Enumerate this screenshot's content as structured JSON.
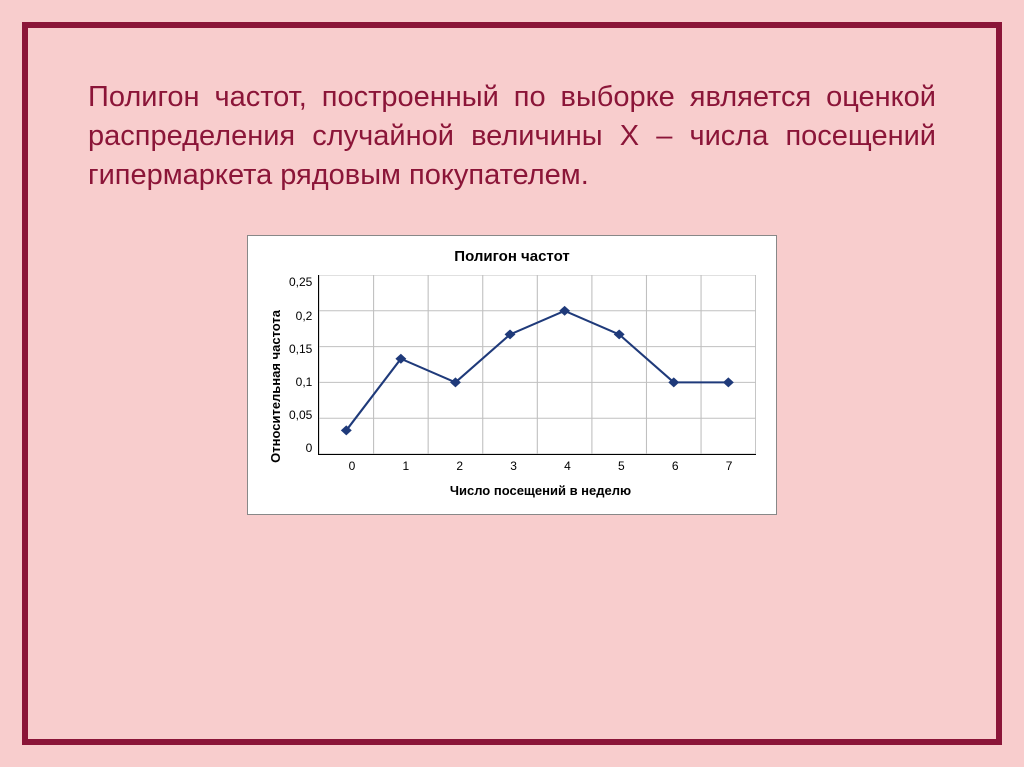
{
  "description": {
    "text": "Полигон частот, построенный по выборке является оценкой распределения случайной величины Х – числа посещений гипермаркета рядовым покупателем."
  },
  "chart": {
    "type": "line",
    "title": "Полигон частот",
    "x_label": "Число посещений в неделю",
    "y_label": "Относительная частота",
    "x_values": [
      0,
      1,
      2,
      3,
      4,
      5,
      6,
      7
    ],
    "y_values": [
      0.033,
      0.133,
      0.1,
      0.167,
      0.2,
      0.167,
      0.1,
      0.1
    ],
    "x_ticks": [
      "0",
      "1",
      "2",
      "3",
      "4",
      "5",
      "6",
      "7"
    ],
    "y_ticks": [
      "0,25",
      "0,2",
      "0,15",
      "0,1",
      "0,05",
      "0"
    ],
    "ylim": [
      0,
      0.25
    ],
    "xlim": [
      0,
      7
    ],
    "line_color": "#1f3a7a",
    "marker_color": "#1f3a7a",
    "marker_shape": "diamond",
    "marker_size": 5,
    "line_width": 2,
    "grid_color": "#c0c0c0",
    "background_color": "#ffffff",
    "grid": true,
    "title_fontsize": 15,
    "label_fontsize": 13,
    "tick_fontsize": 12
  },
  "frame": {
    "border_color": "#8b1538",
    "background_color": "#f8cdcd",
    "text_color": "#8b1538"
  }
}
